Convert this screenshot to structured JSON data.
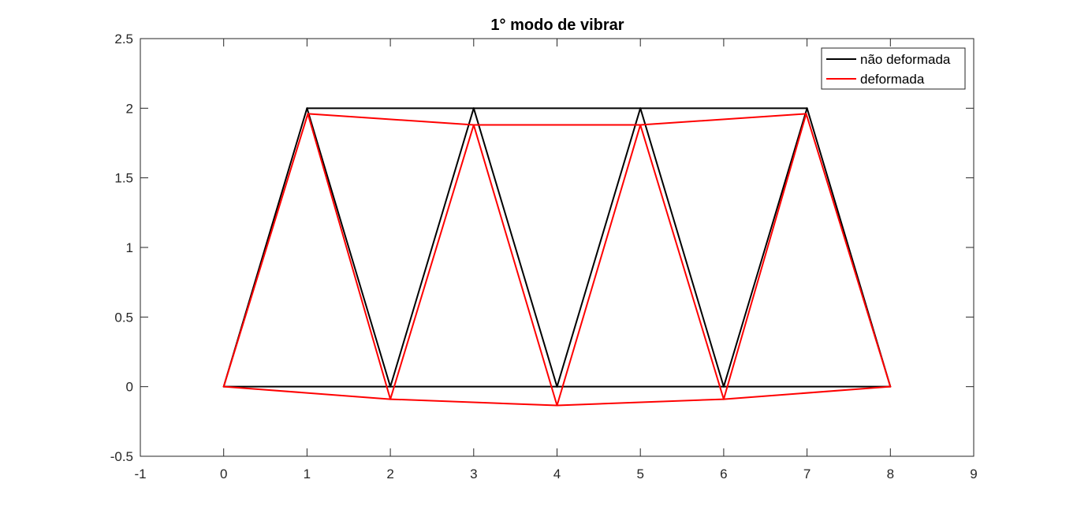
{
  "chart_data": {
    "type": "line",
    "title": "1° modo de vibrar",
    "xlabel": "",
    "ylabel": "",
    "xlim": [
      -1,
      9
    ],
    "ylim": [
      -0.5,
      2.5
    ],
    "xticks": [
      -1,
      0,
      1,
      2,
      3,
      4,
      5,
      6,
      7,
      8,
      9
    ],
    "yticks": [
      -0.5,
      0,
      0.5,
      1,
      1.5,
      2,
      2.5
    ],
    "xtick_labels": [
      "-1",
      "0",
      "1",
      "2",
      "3",
      "4",
      "5",
      "6",
      "7",
      "8",
      "9"
    ],
    "ytick_labels": [
      "-0.5",
      "0",
      "0.5",
      "1",
      "1.5",
      "2",
      "2.5"
    ],
    "grid": false,
    "legend_position": "top-right",
    "series": [
      {
        "name": "não deformada",
        "color": "#000000",
        "x": [
          0,
          1,
          2,
          3,
          4,
          5,
          6,
          7,
          8,
          0,
          1,
          3,
          5
        ],
        "y": [
          0,
          2,
          0,
          2,
          0,
          2,
          0,
          2,
          0,
          0,
          2,
          2,
          2
        ],
        "segments": [
          [
            0,
            0,
            2,
            0
          ],
          [
            2,
            0,
            4,
            0
          ],
          [
            4,
            0,
            6,
            0
          ],
          [
            6,
            0,
            8,
            0
          ],
          [
            1,
            2,
            3,
            2
          ],
          [
            3,
            2,
            5,
            2
          ],
          [
            5,
            2,
            7,
            2
          ],
          [
            0,
            0,
            1,
            2
          ],
          [
            1,
            2,
            2,
            0
          ],
          [
            2,
            0,
            3,
            2
          ],
          [
            3,
            2,
            4,
            0
          ],
          [
            4,
            0,
            5,
            2
          ],
          [
            5,
            2,
            6,
            0
          ],
          [
            6,
            0,
            7,
            2
          ],
          [
            7,
            2,
            8,
            0
          ]
        ]
      },
      {
        "name": "deformada",
        "color": "#ff0000",
        "nodes": {
          "n0": [
            0,
            0
          ],
          "n1": [
            1.01,
            1.96
          ],
          "n2": [
            2.0,
            -0.09
          ],
          "n3": [
            3.0,
            1.88
          ],
          "n4": [
            4.0,
            -0.135
          ],
          "n5": [
            5.0,
            1.88
          ],
          "n6": [
            6.0,
            -0.09
          ],
          "n7": [
            6.99,
            1.96
          ],
          "n8": [
            8,
            0
          ]
        },
        "segments": [
          [
            "n0",
            "n2"
          ],
          [
            "n2",
            "n4"
          ],
          [
            "n4",
            "n6"
          ],
          [
            "n6",
            "n8"
          ],
          [
            "n1",
            "n3"
          ],
          [
            "n3",
            "n5"
          ],
          [
            "n5",
            "n7"
          ],
          [
            "n0",
            "n1"
          ],
          [
            "n1",
            "n2"
          ],
          [
            "n2",
            "n3"
          ],
          [
            "n3",
            "n4"
          ],
          [
            "n4",
            "n5"
          ],
          [
            "n5",
            "n6"
          ],
          [
            "n6",
            "n7"
          ],
          [
            "n7",
            "n8"
          ]
        ]
      }
    ]
  }
}
